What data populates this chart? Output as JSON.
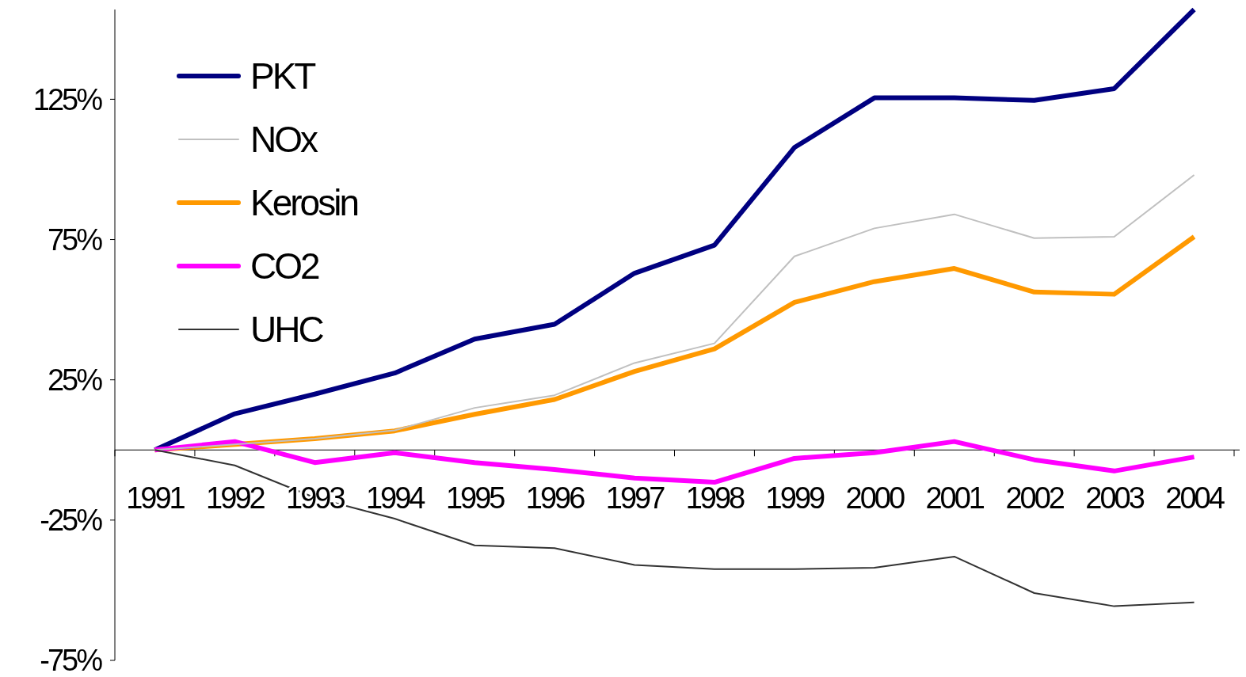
{
  "chart_data": {
    "type": "line",
    "categories": [
      "1991",
      "1992",
      "1993",
      "1994",
      "1995",
      "1996",
      "1997",
      "1998",
      "1999",
      "2000",
      "2001",
      "2002",
      "2003",
      "2004"
    ],
    "series": [
      {
        "name": "PKT",
        "color": "#000080",
        "values": [
          0,
          12.9,
          19.9,
          27.4,
          39.5,
          44.8,
          63,
          73,
          107.8,
          125.5,
          125.5,
          124.6,
          128.8,
          157
        ]
      },
      {
        "name": "NOx",
        "color": "#c0c0c0",
        "values": [
          0,
          2,
          4,
          7,
          15,
          19.5,
          31,
          38,
          69,
          79,
          84,
          75.5,
          76,
          98
        ]
      },
      {
        "name": "Kerosin",
        "color": "#ff9900",
        "values": [
          0,
          2,
          4,
          6.8,
          12.7,
          18,
          28,
          36,
          52.6,
          60,
          64.7,
          56.3,
          55.5,
          76
        ]
      },
      {
        "name": "CO2",
        "color": "#ff00ff",
        "values": [
          0,
          3,
          -4.5,
          -1,
          -4.5,
          -7,
          -10,
          -11.5,
          -3,
          -1,
          3,
          -3.5,
          -7.5,
          -2.5
        ]
      },
      {
        "name": "UHC",
        "color": "#333333",
        "values": [
          0,
          -5.5,
          -17,
          -24.5,
          -34,
          -35,
          -41,
          -42.5,
          -42.5,
          -42,
          -38,
          -51,
          -55.7,
          -54.3
        ]
      }
    ],
    "ylim": [
      -75,
      157
    ],
    "yticks": [
      {
        "value": 125,
        "label": "125%"
      },
      {
        "value": 75,
        "label": "75%"
      },
      {
        "value": 25,
        "label": "25%"
      },
      {
        "value": -25,
        "label": "-25%"
      },
      {
        "value": -75,
        "label": "-75%"
      }
    ],
    "grid": false,
    "legend": "top left",
    "marker": "none",
    "line_style": "solid"
  }
}
